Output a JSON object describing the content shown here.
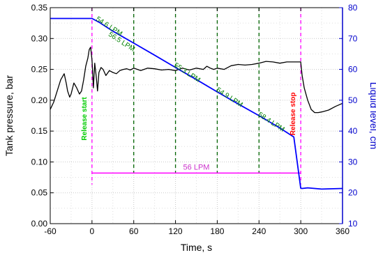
{
  "chart_data": {
    "type": "line",
    "xlabel": "Time, s",
    "ylabel_left": "Tank pressure, bar",
    "ylabel_right": "Liquid level, cm",
    "xlim": [
      -60,
      360
    ],
    "ylim_left": [
      0,
      0.35
    ],
    "ylim_right": [
      10,
      80
    ],
    "x_ticks": [
      "-60",
      "0",
      "60",
      "120",
      "180",
      "240",
      "300",
      "360"
    ],
    "y_left_ticks": [
      "0.00",
      "0.05",
      "0.10",
      "0.15",
      "0.20",
      "0.25",
      "0.30",
      "0.35"
    ],
    "y_right_ticks": [
      "10",
      "20",
      "30",
      "40",
      "50",
      "60",
      "70",
      "80"
    ],
    "grid": true,
    "colors": {
      "pressure": "#000000",
      "level": "#0000ff",
      "interval_lines": "#006400",
      "release_markers": "#ff00ff",
      "release_start_label": "#00cc00",
      "release_stop_label": "#ff0000",
      "lpm_labels": "#008000",
      "average_label": "#cc33cc",
      "right_axis": "#0000cc"
    },
    "series": [
      {
        "axis": "left",
        "x": [
          -60,
          -55,
          -50,
          -45,
          -40,
          -37,
          -35,
          -32,
          -30,
          -26,
          -22,
          -18,
          -15,
          -12,
          -9,
          -6,
          -4,
          -2,
          0,
          2,
          4,
          6,
          8,
          10,
          13,
          16,
          20,
          25,
          30,
          35,
          40,
          45,
          50,
          55,
          60,
          70,
          80,
          90,
          100,
          110,
          120,
          130,
          140,
          150,
          160,
          165,
          170,
          175,
          180,
          190,
          200,
          210,
          220,
          230,
          240,
          250,
          260,
          270,
          280,
          290,
          300,
          302,
          305,
          310,
          315,
          320,
          325,
          330,
          340,
          350,
          360
        ],
        "values": [
          0.185,
          0.197,
          0.215,
          0.233,
          0.243,
          0.228,
          0.215,
          0.205,
          0.21,
          0.228,
          0.22,
          0.21,
          0.215,
          0.233,
          0.255,
          0.268,
          0.282,
          0.286,
          0.265,
          0.22,
          0.26,
          0.24,
          0.215,
          0.245,
          0.253,
          0.25,
          0.24,
          0.248,
          0.245,
          0.243,
          0.248,
          0.25,
          0.251,
          0.249,
          0.252,
          0.248,
          0.252,
          0.251,
          0.249,
          0.25,
          0.248,
          0.252,
          0.249,
          0.252,
          0.25,
          0.255,
          0.252,
          0.25,
          0.252,
          0.25,
          0.256,
          0.258,
          0.257,
          0.258,
          0.26,
          0.263,
          0.262,
          0.26,
          0.262,
          0.262,
          0.262,
          0.24,
          0.22,
          0.2,
          0.185,
          0.18,
          0.18,
          0.181,
          0.184,
          0.19,
          0.195
        ]
      },
      {
        "axis": "right",
        "x": [
          -60,
          0,
          10,
          30,
          60,
          90,
          120,
          150,
          180,
          210,
          240,
          270,
          290,
          300,
          302,
          310,
          330,
          360
        ],
        "values": [
          76.5,
          76.5,
          75.3,
          72.4,
          68.5,
          64.6,
          60.6,
          56.7,
          52.7,
          48.8,
          45.0,
          41.0,
          38.1,
          21.5,
          21.4,
          21.6,
          21.2,
          21.4
        ]
      }
    ],
    "interval_lines_x": [
      60,
      120,
      180,
      240
    ],
    "release_markers_x": [
      0,
      300
    ],
    "average_bracket": {
      "x_start": 0,
      "x_end": 300,
      "y": 0.082
    },
    "annotations": {
      "release_start": "Release start",
      "release_stop": "Release stop",
      "lpm": [
        "54.6 LPM",
        "56.5 LPM",
        "55.3 LPM",
        "54.9 LPM",
        "58.4 LPM"
      ],
      "average": "56 LPM"
    }
  }
}
